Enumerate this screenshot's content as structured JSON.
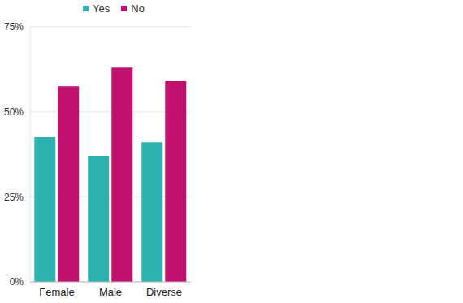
{
  "chart_data": {
    "type": "bar",
    "categories": [
      "Female",
      "Male",
      "Diverse"
    ],
    "series": [
      {
        "name": "Yes",
        "color": "#2EB2B0",
        "values": [
          42.5,
          37,
          41
        ]
      },
      {
        "name": "No",
        "color": "#C0116E",
        "values": [
          57.5,
          63,
          59
        ]
      }
    ],
    "ylim": [
      0,
      75
    ],
    "yticks": [
      {
        "value": 0,
        "label": "0%"
      },
      {
        "value": 25,
        "label": "25%"
      },
      {
        "value": 50,
        "label": "50%"
      },
      {
        "value": 75,
        "label": "75%"
      }
    ],
    "grid": true,
    "legend": "top"
  }
}
